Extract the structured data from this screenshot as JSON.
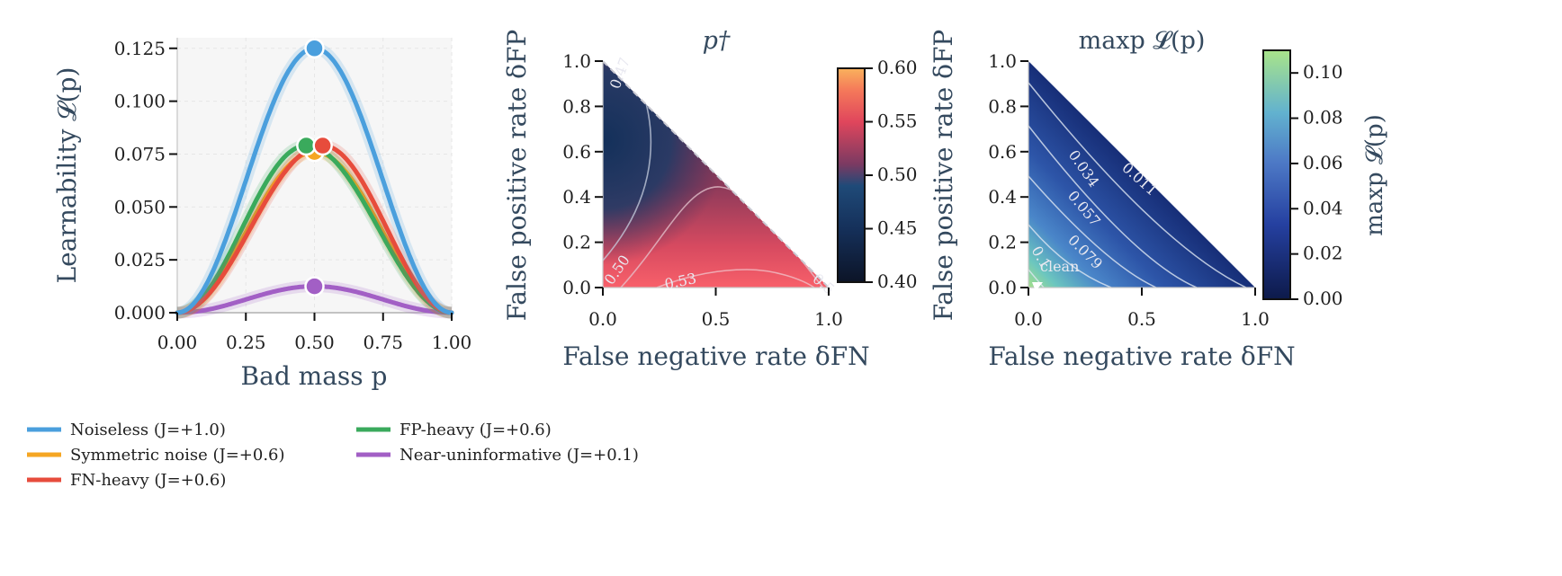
{
  "chart_data": [
    {
      "type": "line",
      "xlabel": "Bad mass p",
      "ylabel": "Learnability 𝓛(p)",
      "xlim": [
        0,
        1
      ],
      "ylim": [
        0,
        0.13
      ],
      "xticks": [
        "0.00",
        "0.25",
        "0.50",
        "0.75",
        "1.00"
      ],
      "yticks": [
        "0.000",
        "0.025",
        "0.050",
        "0.075",
        "0.100",
        "0.125"
      ],
      "grid": true,
      "series": [
        {
          "name": "Noiseless",
          "J": "J=+1.0",
          "color": "#4a9fdd",
          "peak_x": 0.5,
          "peak_y": 0.125
        },
        {
          "name": "Symmetric noise",
          "J": "J=+0.6",
          "color": "#f5a623",
          "peak_x": 0.5,
          "peak_y": 0.076
        },
        {
          "name": "FN-heavy",
          "J": "J=+0.6",
          "color": "#e74c3c",
          "peak_x": 0.53,
          "peak_y": 0.079
        },
        {
          "name": "FP-heavy",
          "J": "J=+0.6",
          "color": "#3aaa5c",
          "peak_x": 0.47,
          "peak_y": 0.079
        },
        {
          "name": "Near-uninformative",
          "J": "J=+0.1",
          "color": "#a25fc5",
          "peak_x": 0.5,
          "peak_y": 0.0125
        }
      ],
      "legend": [
        {
          "label": "Noiseless (J=+1.0)",
          "color": "#4a9fdd"
        },
        {
          "label": "Symmetric noise (J=+0.6)",
          "color": "#f5a623"
        },
        {
          "label": "FN-heavy (J=+0.6)",
          "color": "#e74c3c"
        },
        {
          "label": "FP-heavy (J=+0.6)",
          "color": "#3aaa5c"
        },
        {
          "label": "Near-uninformative (J=+0.1)",
          "color": "#a25fc5"
        }
      ]
    },
    {
      "type": "heatmap",
      "title": "p†",
      "xlabel": "False negative rate δFN",
      "ylabel": "False positive rate δFP",
      "xlim": [
        0,
        1
      ],
      "ylim": [
        0,
        1
      ],
      "xticks": [
        "0.0",
        "0.5",
        "1.0"
      ],
      "yticks": [
        "0.0",
        "0.2",
        "0.4",
        "0.6",
        "0.8",
        "1.0"
      ],
      "colorbar": {
        "min": 0.4,
        "max": 0.6,
        "ticks": [
          "0.40",
          "0.45",
          "0.50",
          "0.55",
          "0.60"
        ]
      },
      "contour_labels": [
        "0.47",
        "0.50",
        "0.53",
        "0.5"
      ]
    },
    {
      "type": "heatmap",
      "title": "maxp 𝓛(p)",
      "xlabel": "False negative rate δFN",
      "ylabel": "False positive rate δFP",
      "xlim": [
        0,
        1
      ],
      "ylim": [
        0,
        1
      ],
      "xticks": [
        "0.0",
        "0.5",
        "1.0"
      ],
      "yticks": [
        "0.0",
        "0.2",
        "0.4",
        "0.6",
        "0.8",
        "1.0"
      ],
      "colorbar": {
        "min": 0.0,
        "max": 0.11,
        "label": "maxp 𝓛(p)",
        "ticks": [
          "0.00",
          "0.02",
          "0.04",
          "0.06",
          "0.08",
          "0.10"
        ]
      },
      "contour_labels": [
        "0.011",
        "0.034",
        "0.057",
        "0.079",
        "0.1"
      ],
      "annotation": "clean"
    }
  ]
}
